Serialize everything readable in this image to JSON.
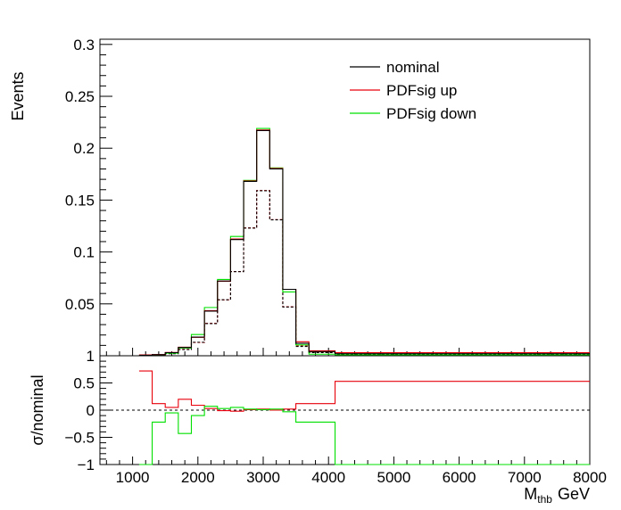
{
  "colors": {
    "nominal": "#000000",
    "up": "#e8000b",
    "down": "#00e000"
  },
  "chart_data": [
    {
      "type": "line",
      "panel": "top",
      "ylabel": "Events",
      "xlim": [
        500,
        8000
      ],
      "ylim": [
        0,
        0.305
      ],
      "yticks": [
        0.05,
        0.1,
        0.15,
        0.2,
        0.25,
        0.3
      ],
      "ytick_labels": [
        "0.05",
        "0.1",
        "0.15",
        "0.2",
        "0.25",
        "0.3"
      ],
      "bin_edges": [
        1100,
        1300,
        1500,
        1700,
        1900,
        2100,
        2300,
        2500,
        2700,
        2900,
        3100,
        3300,
        3500,
        3700,
        4100,
        8000
      ],
      "legend_position": "top-right",
      "series": [
        {
          "name": "nominal",
          "style": "solid",
          "values": [
            0.0005,
            0.001,
            0.003,
            0.008,
            0.018,
            0.043,
            0.072,
            0.112,
            0.168,
            0.217,
            0.18,
            0.064,
            0.012,
            0.004,
            0.002
          ]
        },
        {
          "name": "PDFsig up",
          "style": "solid",
          "values": [
            0.0008,
            0.0011,
            0.0032,
            0.0082,
            0.0178,
            0.0435,
            0.0718,
            0.1125,
            0.1685,
            0.2175,
            0.1805,
            0.064,
            0.0135,
            0.0048,
            0.003
          ]
        },
        {
          "name": "PDFsig down",
          "style": "solid",
          "values": [
            0.0,
            0.0008,
            0.0025,
            0.0075,
            0.0205,
            0.0465,
            0.0735,
            0.115,
            0.169,
            0.219,
            0.181,
            0.0615,
            0.0105,
            0.0015,
            0.0008
          ]
        },
        {
          "name": "",
          "style": "dashed",
          "color_of": "nominal",
          "values": [
            0.0003,
            0.0007,
            0.002,
            0.006,
            0.013,
            0.031,
            0.054,
            0.081,
            0.123,
            0.159,
            0.131,
            0.047,
            0.009,
            0.003,
            0.0015
          ]
        },
        {
          "name": "",
          "style": "dashed",
          "color_of": "up",
          "values": [
            0.0004,
            0.0008,
            0.0022,
            0.0062,
            0.0128,
            0.0312,
            0.0538,
            0.0812,
            0.1232,
            0.1592,
            0.1312,
            0.0472,
            0.0095,
            0.0034,
            0.0018
          ]
        }
      ]
    },
    {
      "type": "line",
      "panel": "bottom",
      "ylabel": "σ/nominal",
      "xlabel": "M",
      "xlabel_sub": "thb",
      "xlabel_unit": "GeV",
      "xlim": [
        500,
        8000
      ],
      "ylim": [
        -1,
        1
      ],
      "yticks": [
        -1,
        -0.5,
        0,
        0.5,
        1
      ],
      "ytick_labels": [
        "−1",
        "−0.5",
        "0",
        "0.5",
        "1"
      ],
      "xticks": [
        1000,
        2000,
        3000,
        4000,
        5000,
        6000,
        7000,
        8000
      ],
      "xtick_labels": [
        "1000",
        "2000",
        "3000",
        "4000",
        "5000",
        "6000",
        "7000",
        "8000"
      ],
      "bin_edges": [
        1100,
        1300,
        1500,
        1700,
        1900,
        2100,
        2300,
        2500,
        2700,
        2900,
        3100,
        3300,
        3500,
        3700,
        4100,
        8000
      ],
      "reference_line": 0,
      "series": [
        {
          "name": "PDFsig up",
          "color_of": "up",
          "values": [
            0.72,
            0.12,
            0.05,
            0.2,
            0.09,
            0.03,
            -0.01,
            -0.02,
            0.01,
            0.02,
            0.0,
            0.02,
            0.12,
            0.12,
            0.53
          ]
        },
        {
          "name": "PDFsig down",
          "color_of": "down",
          "values": [
            -1.6,
            -0.22,
            -0.05,
            -0.43,
            -0.1,
            0.07,
            0.03,
            0.05,
            0.02,
            0.01,
            0.02,
            -0.03,
            -0.22,
            -0.22,
            -1.6
          ]
        }
      ]
    }
  ]
}
